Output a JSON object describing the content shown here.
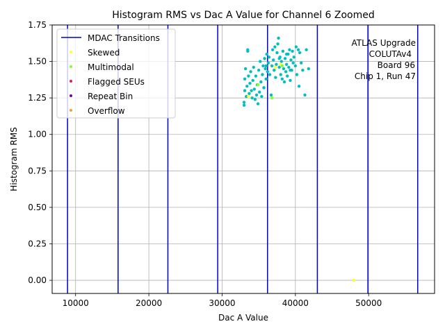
{
  "chart_data": {
    "type": "scatter",
    "title": "Histogram RMS vs Dac A Value for Channel 6 Zoomed",
    "xlabel": "Dac A Value",
    "ylabel": "Histogram RMS",
    "xlim": [
      6800,
      59000
    ],
    "ylim": [
      -0.09,
      1.75
    ],
    "xticks": [
      10000,
      20000,
      30000,
      40000,
      50000
    ],
    "yticks": [
      0.0,
      0.25,
      0.5,
      0.75,
      1.0,
      1.25,
      1.5,
      1.75
    ],
    "xtick_labels": [
      "10000",
      "20000",
      "30000",
      "40000",
      "50000"
    ],
    "ytick_labels": [
      "0.00",
      "0.25",
      "0.50",
      "0.75",
      "1.00",
      "1.25",
      "1.50",
      "1.75"
    ],
    "grid": true,
    "legend_position": "top-left",
    "mdac_transitions": {
      "name": "MDAC Transitions",
      "color": "#0000cc",
      "x": [
        8900,
        15800,
        22600,
        29400,
        36200,
        43000,
        49900,
        56700
      ]
    },
    "main_series": {
      "color": "#00bfbf",
      "points": [
        [
          33000,
          1.2
        ],
        [
          33000,
          1.22
        ],
        [
          33100,
          1.3
        ],
        [
          33100,
          1.38
        ],
        [
          33200,
          1.45
        ],
        [
          33300,
          1.26
        ],
        [
          33400,
          1.33
        ],
        [
          33500,
          1.57
        ],
        [
          33500,
          1.58
        ],
        [
          33600,
          1.4
        ],
        [
          33700,
          1.28
        ],
        [
          33800,
          1.35
        ],
        [
          33900,
          1.43
        ],
        [
          34000,
          1.3
        ],
        [
          34100,
          1.25
        ],
        [
          34200,
          1.37
        ],
        [
          34300,
          1.46
        ],
        [
          34400,
          1.31
        ],
        [
          34500,
          1.24
        ],
        [
          34600,
          1.4
        ],
        [
          34700,
          1.27
        ],
        [
          34800,
          1.34
        ],
        [
          34900,
          1.21
        ],
        [
          35000,
          1.44
        ],
        [
          35100,
          1.29
        ],
        [
          35200,
          1.5
        ],
        [
          35300,
          1.36
        ],
        [
          35400,
          1.26
        ],
        [
          35500,
          1.41
        ],
        [
          35600,
          1.47
        ],
        [
          35700,
          1.32
        ],
        [
          35800,
          1.52
        ],
        [
          35900,
          1.45
        ],
        [
          36000,
          1.38
        ],
        [
          36100,
          1.55
        ],
        [
          36200,
          1.43
        ],
        [
          36300,
          1.49
        ],
        [
          36400,
          1.53
        ],
        [
          36500,
          1.41
        ],
        [
          36700,
          1.27
        ],
        [
          36800,
          1.47
        ],
        [
          36900,
          1.58
        ],
        [
          37000,
          1.51
        ],
        [
          37100,
          1.44
        ],
        [
          37200,
          1.6
        ],
        [
          37300,
          1.39
        ],
        [
          37400,
          1.48
        ],
        [
          37500,
          1.56
        ],
        [
          37600,
          1.62
        ],
        [
          37700,
          1.66
        ],
        [
          37800,
          1.46
        ],
        [
          37900,
          1.53
        ],
        [
          38000,
          1.41
        ],
        [
          38100,
          1.5
        ],
        [
          38200,
          1.38
        ],
        [
          38300,
          1.57
        ],
        [
          38400,
          1.45
        ],
        [
          38500,
          1.36
        ],
        [
          38600,
          1.52
        ],
        [
          38700,
          1.43
        ],
        [
          38800,
          1.48
        ],
        [
          38900,
          1.4
        ],
        [
          39000,
          1.55
        ],
        [
          39100,
          1.46
        ],
        [
          39200,
          1.58
        ],
        [
          39300,
          1.37
        ],
        [
          39400,
          1.51
        ],
        [
          39500,
          1.44
        ],
        [
          39600,
          1.57
        ],
        [
          39700,
          1.49
        ],
        [
          39800,
          1.53
        ],
        [
          40000,
          1.47
        ],
        [
          40100,
          1.6
        ],
        [
          40200,
          1.41
        ],
        [
          40400,
          1.58
        ],
        [
          40500,
          1.33
        ],
        [
          40600,
          1.56
        ],
        [
          40800,
          1.49
        ],
        [
          41000,
          1.44
        ],
        [
          41300,
          1.27
        ],
        [
          41500,
          1.58
        ],
        [
          41800,
          1.45
        ],
        [
          35700,
          1.32
        ],
        [
          36000,
          1.47
        ],
        [
          37800,
          1.52
        ],
        [
          38800,
          1.55
        ],
        [
          39300,
          1.44
        ]
      ]
    },
    "series": [
      {
        "name": "Skewed",
        "color": "#ffff33",
        "points": [
          [
            48000,
            0.0
          ],
          [
            37300,
            1.46
          ],
          [
            38000,
            1.48
          ],
          [
            33600,
            1.26
          ]
        ]
      },
      {
        "name": "Multimodal",
        "color": "#80ff33",
        "points": [
          [
            36800,
            1.25
          ],
          [
            34900,
            1.34
          ],
          [
            38200,
            1.47
          ]
        ]
      },
      {
        "name": "Flagged SEUs",
        "color": "#e0204a",
        "points": []
      },
      {
        "name": "Repeat Bin",
        "color": "#7a0099",
        "points": []
      },
      {
        "name": "Overflow",
        "color": "#ff9933",
        "points": []
      }
    ],
    "annotations": [
      "ATLAS Upgrade",
      "COLUTAv4",
      "Board 96",
      "Chip 1, Run 47"
    ]
  }
}
